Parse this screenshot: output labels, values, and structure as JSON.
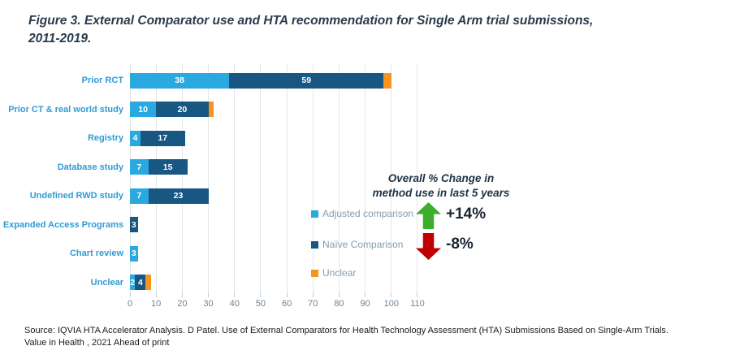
{
  "title": {
    "line1": "Figure 3. External Comparator use and HTA recommendation for Single Arm trial submissions,",
    "line2": "2011-2019."
  },
  "chart_data": {
    "type": "bar",
    "orientation": "horizontal-stacked",
    "categories": [
      "Prior RCT",
      "Prior CT & real world study",
      "Registry",
      "Database study",
      "Undefined RWD study",
      "Expanded Access Programs",
      "Chart review",
      "Unclear"
    ],
    "series": [
      {
        "name": "Adjusted comparison",
        "color": "#29A9E0",
        "values": [
          38,
          10,
          4,
          7,
          7,
          0,
          3,
          2
        ]
      },
      {
        "name": "Naïve Comparison",
        "color": "#175782",
        "values": [
          59,
          20,
          17,
          15,
          23,
          3,
          0,
          4
        ]
      },
      {
        "name": "Unclear",
        "color": "#F7941D",
        "values": [
          3,
          2,
          0,
          0,
          0,
          0,
          0,
          2
        ],
        "labels_hidden": true
      }
    ],
    "xlim": [
      0,
      110
    ],
    "x_ticks": [
      0,
      10,
      20,
      30,
      40,
      50,
      60,
      70,
      80,
      90,
      100,
      110
    ],
    "grid": "vertical",
    "legend_position": "right-middle"
  },
  "annotation": {
    "title_line1": "Overall % Change in",
    "title_line2": "method use in last 5 years",
    "increase": {
      "label": "+14%",
      "color": "#3DAE2B"
    },
    "decrease": {
      "label": "-8%",
      "color": "#C00000"
    }
  },
  "source": {
    "line1": "Source: IQVIA HTA Accelerator Analysis. D Patel. Use of External Comparators for Health Technology Assessment (HTA) Submissions Based on Single-Arm Trials.",
    "line2": "Value in Health , 2021 Ahead of print"
  }
}
